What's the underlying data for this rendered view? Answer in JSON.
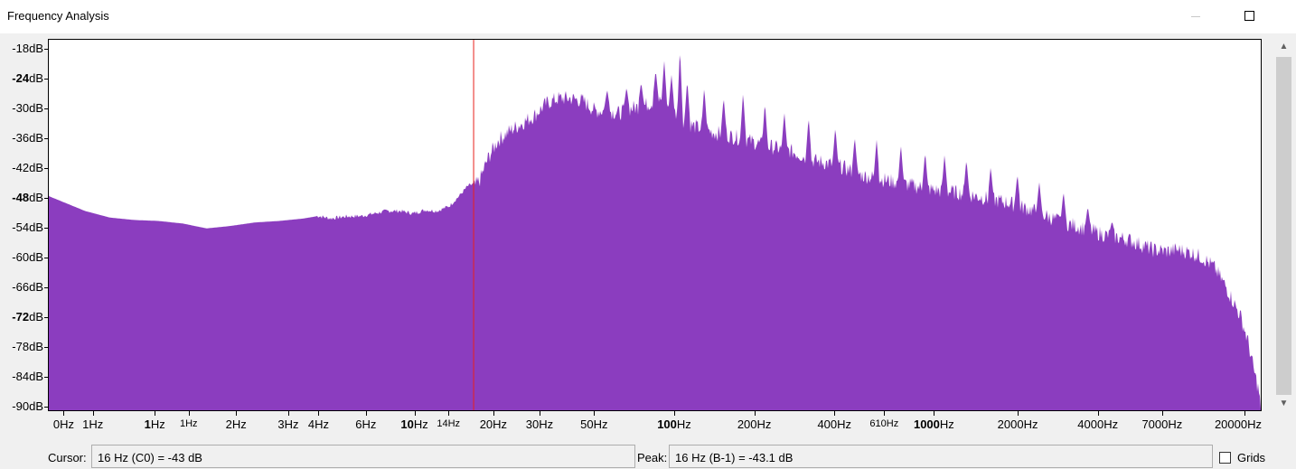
{
  "window": {
    "title": "Frequency Analysis",
    "minimize_icon": "minimize-icon",
    "maximize_icon": "maximize-icon"
  },
  "chart_data": {
    "type": "area",
    "color": "#8b3dbf",
    "cursor_color": "#e8201c",
    "ylim": [
      -91,
      -16
    ],
    "y_ticks": [
      {
        "label": "-18",
        "unit": "dB",
        "value": -18,
        "major": false
      },
      {
        "label": "-24",
        "unit": "dB",
        "value": -24,
        "major": true
      },
      {
        "label": "-30",
        "unit": "dB",
        "value": -30,
        "major": false
      },
      {
        "label": "-36",
        "unit": "dB",
        "value": -36,
        "major": false
      },
      {
        "label": "-42",
        "unit": "dB",
        "value": -42,
        "major": false
      },
      {
        "label": "-48",
        "unit": "dB",
        "value": -48,
        "major": true
      },
      {
        "label": "-54",
        "unit": "dB",
        "value": -54,
        "major": false
      },
      {
        "label": "-60",
        "unit": "dB",
        "value": -60,
        "major": false
      },
      {
        "label": "-66",
        "unit": "dB",
        "value": -66,
        "major": false
      },
      {
        "label": "-72",
        "unit": "dB",
        "value": -72,
        "major": true
      },
      {
        "label": "-78",
        "unit": "dB",
        "value": -78,
        "major": false
      },
      {
        "label": "-84",
        "unit": "dB",
        "value": -84,
        "major": false
      },
      {
        "label": "-90",
        "unit": "dB",
        "value": -90,
        "major": false
      }
    ],
    "x_ticks": [
      {
        "num": "0",
        "unit": "Hz",
        "pos": 0.013,
        "bold": false,
        "small": false
      },
      {
        "num": "1",
        "unit": "Hz",
        "pos": 0.037,
        "bold": false,
        "small": false
      },
      {
        "num": "1",
        "unit": "Hz",
        "pos": 0.088,
        "bold": true,
        "small": false
      },
      {
        "num": "1",
        "unit": "Hz",
        "pos": 0.116,
        "bold": false,
        "small": true
      },
      {
        "num": "2",
        "unit": "Hz",
        "pos": 0.155,
        "bold": false,
        "small": false
      },
      {
        "num": "3",
        "unit": "Hz",
        "pos": 0.198,
        "bold": false,
        "small": false
      },
      {
        "num": "4",
        "unit": "Hz",
        "pos": 0.223,
        "bold": false,
        "small": false
      },
      {
        "num": "6",
        "unit": "Hz",
        "pos": 0.262,
        "bold": false,
        "small": false
      },
      {
        "num": "10",
        "unit": "Hz",
        "pos": 0.302,
        "bold": true,
        "small": false
      },
      {
        "num": "14",
        "unit": "Hz",
        "pos": 0.33,
        "bold": false,
        "small": true
      },
      {
        "num": "20",
        "unit": "Hz",
        "pos": 0.367,
        "bold": false,
        "small": false
      },
      {
        "num": "30",
        "unit": "Hz",
        "pos": 0.405,
        "bold": false,
        "small": false
      },
      {
        "num": "50",
        "unit": "Hz",
        "pos": 0.45,
        "bold": false,
        "small": false
      },
      {
        "num": "100",
        "unit": "Hz",
        "pos": 0.516,
        "bold": true,
        "small": false
      },
      {
        "num": "200",
        "unit": "Hz",
        "pos": 0.582,
        "bold": false,
        "small": false
      },
      {
        "num": "400",
        "unit": "Hz",
        "pos": 0.648,
        "bold": false,
        "small": false
      },
      {
        "num": "610",
        "unit": "Hz",
        "pos": 0.689,
        "bold": false,
        "small": true
      },
      {
        "num": "1000",
        "unit": "Hz",
        "pos": 0.73,
        "bold": true,
        "small": false
      },
      {
        "num": "2000",
        "unit": "Hz",
        "pos": 0.799,
        "bold": false,
        "small": false
      },
      {
        "num": "4000",
        "unit": "Hz",
        "pos": 0.865,
        "bold": false,
        "small": false
      },
      {
        "num": "7000",
        "unit": "Hz",
        "pos": 0.918,
        "bold": false,
        "small": false
      },
      {
        "num": "20000",
        "unit": "Hz",
        "pos": 0.986,
        "bold": false,
        "small": false
      }
    ],
    "cursor_pos": 0.35,
    "series": [
      {
        "envelope_x": [
          0,
          0.01,
          0.03,
          0.05,
          0.07,
          0.09,
          0.11,
          0.13,
          0.15,
          0.17,
          0.19,
          0.21,
          0.222,
          0.232,
          0.245,
          0.258,
          0.268,
          0.278,
          0.29,
          0.3,
          0.31,
          0.32,
          0.33,
          0.338,
          0.345,
          0.35,
          0.355,
          0.362,
          0.37,
          0.38,
          0.39,
          0.4,
          0.41,
          0.42,
          0.43,
          0.44,
          0.45,
          0.46,
          0.47,
          0.48,
          0.49,
          0.5,
          0.51,
          0.52,
          0.53,
          0.55,
          0.57,
          0.59,
          0.61,
          0.63,
          0.65,
          0.67,
          0.69,
          0.71,
          0.73,
          0.75,
          0.77,
          0.79,
          0.81,
          0.83,
          0.85,
          0.87,
          0.89,
          0.91,
          0.92,
          0.93,
          0.94,
          0.95,
          0.96,
          0.97,
          0.976,
          0.982,
          0.988,
          0.993,
          0.997,
          0.999
        ],
        "envelope_y": [
          -47.5,
          -48.5,
          -50.5,
          -51.8,
          -52.3,
          -52.5,
          -53.0,
          -54.0,
          -53.5,
          -52.8,
          -52.5,
          -52.0,
          -51.5,
          -52.0,
          -51.6,
          -51.5,
          -51.0,
          -50.5,
          -50.5,
          -51.0,
          -50.3,
          -50.5,
          -49.5,
          -47.5,
          -45.5,
          -45.0,
          -43.5,
          -39.0,
          -35.5,
          -33.5,
          -32.0,
          -30.5,
          -28.0,
          -27.0,
          -27.0,
          -27.5,
          -29.5,
          -29.5,
          -30.0,
          -29.0,
          -28.5,
          -27.5,
          -28.5,
          -31.0,
          -32.5,
          -34.0,
          -35.0,
          -36.5,
          -37.5,
          -39.5,
          -40.5,
          -42.5,
          -43.5,
          -44.5,
          -45.5,
          -46.0,
          -47.0,
          -48.0,
          -49.5,
          -51.5,
          -53.0,
          -54.5,
          -55.5,
          -57.5,
          -57.8,
          -57.5,
          -58.0,
          -59.0,
          -61.0,
          -65.0,
          -68.0,
          -71.0,
          -76.0,
          -82.0,
          -86.0,
          -91.0
        ],
        "peaks": [
          {
            "x": 0.46,
            "y": -26.0
          },
          {
            "x": 0.476,
            "y": -25.5
          },
          {
            "x": 0.488,
            "y": -24.5
          },
          {
            "x": 0.5,
            "y": -22.0
          },
          {
            "x": 0.507,
            "y": -20.0
          },
          {
            "x": 0.513,
            "y": -23.0
          },
          {
            "x": 0.52,
            "y": -17.5
          },
          {
            "x": 0.526,
            "y": -24.0
          },
          {
            "x": 0.54,
            "y": -25.5
          },
          {
            "x": 0.556,
            "y": -27.5
          },
          {
            "x": 0.572,
            "y": -26.5
          },
          {
            "x": 0.59,
            "y": -28.5
          },
          {
            "x": 0.606,
            "y": -30.5
          },
          {
            "x": 0.626,
            "y": -31.5
          },
          {
            "x": 0.648,
            "y": -33.5
          },
          {
            "x": 0.664,
            "y": -35.5
          },
          {
            "x": 0.682,
            "y": -36.0
          },
          {
            "x": 0.702,
            "y": -37.0
          },
          {
            "x": 0.722,
            "y": -38.5
          },
          {
            "x": 0.738,
            "y": -39.0
          },
          {
            "x": 0.756,
            "y": -40.0
          },
          {
            "x": 0.776,
            "y": -41.5
          },
          {
            "x": 0.798,
            "y": -43.0
          },
          {
            "x": 0.816,
            "y": -44.5
          },
          {
            "x": 0.836,
            "y": -46.5
          },
          {
            "x": 0.856,
            "y": -49.5
          },
          {
            "x": 0.876,
            "y": -52.5
          }
        ]
      }
    ]
  },
  "status": {
    "cursor_label": "Cursor:",
    "cursor_value": "16 Hz (C0) = -43 dB",
    "peak_label": "Peak:",
    "peak_value": "16 Hz (B-1) = -43.1 dB",
    "grids_label": "Grids",
    "grids_checked": false
  },
  "scrollbar": {
    "up_icon": "▲",
    "down_icon": "▼"
  }
}
